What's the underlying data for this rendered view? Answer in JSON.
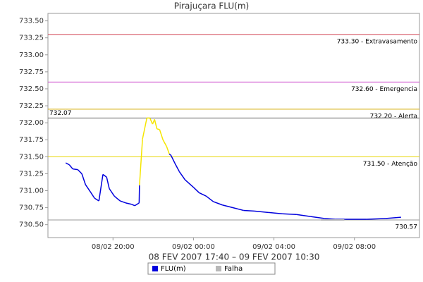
{
  "chart_data": {
    "type": "line",
    "title": "Pirajuçara FLU(m)",
    "subtitle": "08 FEV 2007 17:40 – 09 FEV 2007 10:30",
    "xlim": [
      "08/02 16:46",
      "09/02 11:14"
    ],
    "xticks": [
      "08/02 20:00",
      "09/02 00:00",
      "09/02 04:00",
      "09/02 08:00"
    ],
    "ylim": [
      730.31,
      733.61
    ],
    "yticks": [
      {
        "value": 730.5,
        "label": "730.50"
      },
      {
        "value": 730.75,
        "label": "730.75"
      },
      {
        "value": 731,
        "label": "731.00"
      },
      {
        "value": 731.25,
        "label": "731.25"
      },
      {
        "value": 731.5,
        "label": "731.50"
      },
      {
        "value": 731.75,
        "label": "731.75"
      },
      {
        "value": 732,
        "label": "732.00"
      },
      {
        "value": 732.25,
        "label": "732.25"
      },
      {
        "value": 732.5,
        "label": "732.50"
      },
      {
        "value": 732.75,
        "label": "732.75"
      },
      {
        "value": 733,
        "label": "733.00"
      },
      {
        "value": 733.25,
        "label": "733.25"
      },
      {
        "value": 733.5,
        "label": "733.50"
      }
    ],
    "thresholds": [
      {
        "value": 733.3,
        "label": "733.30 - Extravasamento",
        "color": "#d04050",
        "label_side": "right"
      },
      {
        "value": 732.6,
        "label": "732.60 - Emergencia",
        "color": "#cc44cc",
        "label_side": "right"
      },
      {
        "value": 732.2,
        "label": "732.20 - Alerta",
        "color": "#d4aa00",
        "label_side": "right"
      },
      {
        "value": 732.07,
        "label": "732.07",
        "color": "#666666",
        "label_side": "left"
      },
      {
        "value": 731.5,
        "label": "731.50 - Atenção",
        "color": "#e8d400",
        "label_side": "right"
      },
      {
        "value": 730.57,
        "label": "730.57",
        "color": "#999999",
        "label_side": "right"
      }
    ],
    "highlight": {
      "from": "08/02 21:19",
      "to": "08/02 22:48",
      "color": "#f5e600"
    },
    "legend": "bottom",
    "series": [
      {
        "name": "FLU(m)",
        "color": "#0000dd",
        "x": [
          "08/02 17:39",
          "08/02 17:50",
          "08/02 18:00",
          "08/02 18:15",
          "08/02 18:27",
          "08/02 18:38",
          "08/02 18:53",
          "08/02 19:05",
          "08/02 19:18",
          "08/02 19:30",
          "08/02 19:41",
          "08/02 19:49",
          "08/02 20:04",
          "08/02 20:21",
          "08/02 20:38",
          "08/02 20:55",
          "08/02 21:05",
          "08/02 21:18",
          "08/02 21:19",
          "08/02 21:28",
          "08/02 21:41",
          "08/02 21:50",
          "08/02 21:58",
          "08/02 22:04",
          "08/02 22:11",
          "08/02 22:19",
          "08/02 22:29",
          "08/02 22:40",
          "08/02 22:48",
          "08/02 22:53",
          "08/02 23:05",
          "08/02 23:18",
          "08/02 23:35",
          "09/02 00:00",
          "09/02 00:17",
          "09/02 00:38",
          "09/02 00:59",
          "09/02 01:26",
          "09/02 01:58",
          "09/02 02:29",
          "09/02 03:01",
          "09/02 03:43",
          "09/02 04:25",
          "09/02 05:07",
          "09/02 05:49",
          "09/02 06:32",
          "09/02 07:03",
          "09/02 07:35",
          "09/02 08:38",
          "09/02 09:31",
          "09/02 10:19"
        ],
        "values": [
          731.41,
          731.38,
          731.32,
          731.31,
          731.25,
          731.09,
          730.98,
          730.89,
          730.85,
          731.24,
          731.2,
          731.03,
          730.92,
          730.85,
          730.82,
          730.8,
          730.78,
          730.82,
          731.08,
          731.76,
          732.07,
          732.07,
          731.98,
          732.05,
          731.91,
          731.9,
          731.75,
          731.65,
          731.54,
          731.52,
          731.4,
          731.28,
          731.16,
          731.05,
          730.97,
          730.92,
          730.84,
          730.79,
          730.75,
          730.71,
          730.7,
          730.68,
          730.66,
          730.65,
          730.62,
          730.59,
          730.58,
          730.58,
          730.58,
          730.59,
          730.61
        ]
      },
      {
        "name": "Falha",
        "color": "#b8b8b8",
        "x": [
          "09/02 06:20",
          "09/02 07:30"
        ],
        "values": [
          730.57,
          730.57
        ]
      }
    ]
  }
}
